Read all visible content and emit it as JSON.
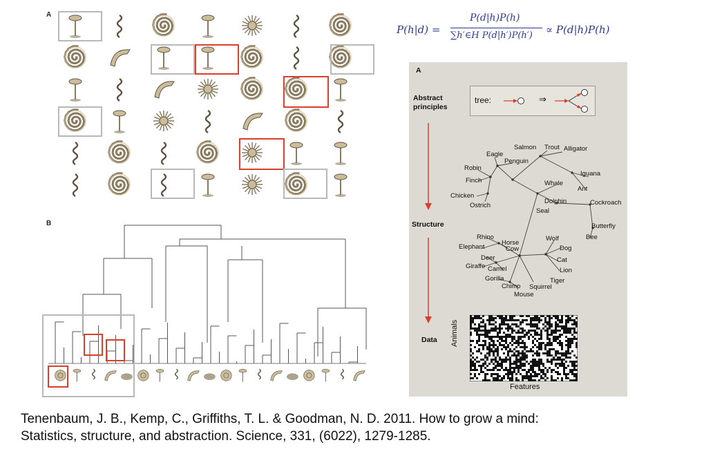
{
  "figure": {
    "panel_label_A": "A",
    "panel_label_B": "B"
  },
  "formula": {
    "lhs": "P(h|d) =",
    "numerator": "P(d|h)P(h)",
    "denominator": "∑h′∈H P(d|h′)P(h′)",
    "rhs": "∝ P(d|h)P(h)"
  },
  "right_panel": {
    "panel_label": "A",
    "levels": {
      "abstract": "Abstract principles",
      "structure": "Structure",
      "data": "Data"
    },
    "rule_label": "tree:",
    "rule_arrow": "⇒",
    "animals_axis": "Animals",
    "features_axis": "Features",
    "tree_labels": [
      "Salmon",
      "Trout",
      "Alligator",
      "Eagle",
      "Penguin",
      "Robin",
      "Iguana",
      "Finch",
      "Whale",
      "Ant",
      "Chicken",
      "Dolphin",
      "Cockroach",
      "Ostrich",
      "Seal",
      "Butterfly",
      "Bee",
      "Rhino",
      "Wolf",
      "Elephant",
      "Horse",
      "Cow",
      "Dog",
      "Deer",
      "Cat",
      "Giraffe",
      "Camel",
      "Lion",
      "Gorilla",
      "Tiger",
      "Chimp",
      "Squirrel",
      "Mouse"
    ]
  },
  "citation": {
    "line1": "Tenenbaum, J. B., Kemp, C., Griffiths, T. L. & Goodman, N. D. 2011. How to grow a mind:",
    "line2": "Statistics, structure, and abstraction. Science, 331, (6022), 1279-1285."
  },
  "colors": {
    "highlight": "#d8402c",
    "formula": "#2b3a8c",
    "panel_bg": "#dcdad2",
    "arrow": "#d8402c"
  }
}
